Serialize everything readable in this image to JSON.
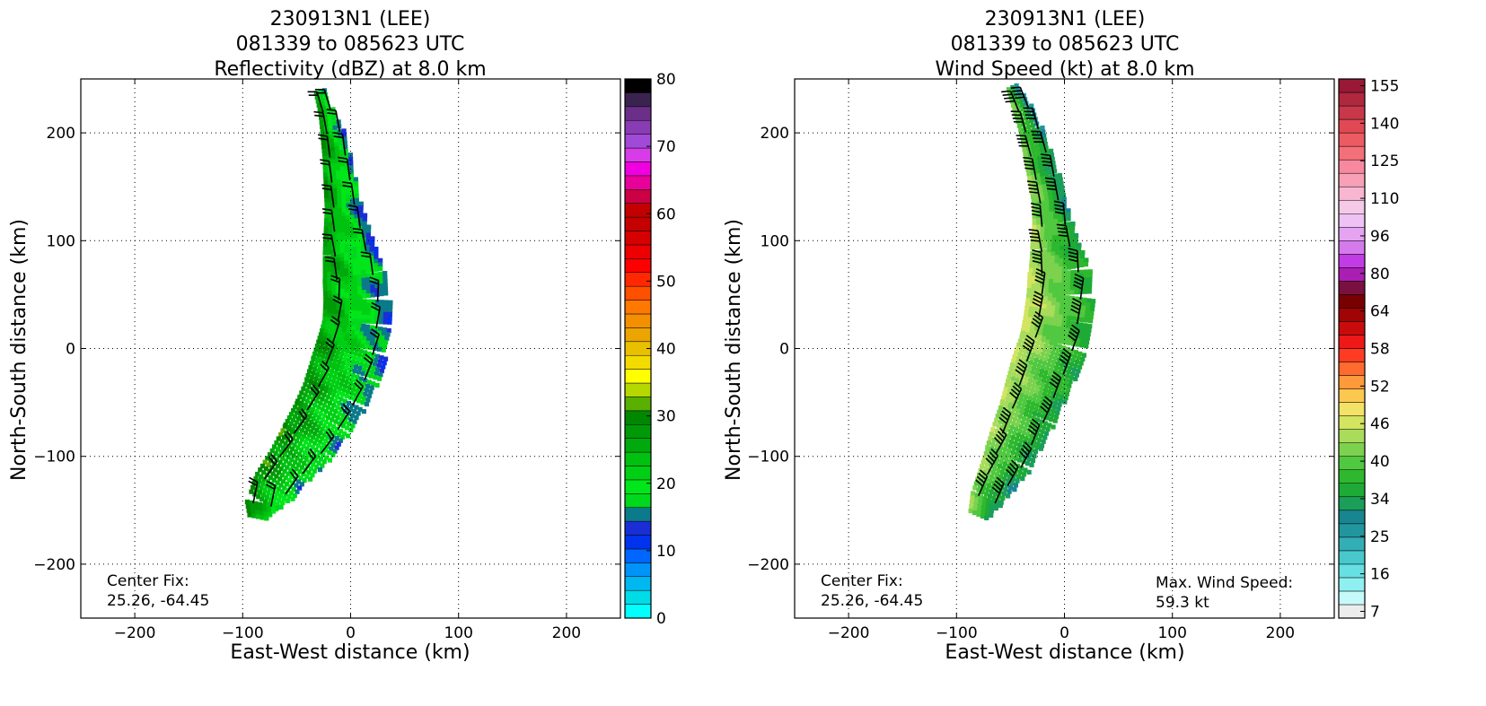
{
  "chart_data": [
    {
      "type": "heatmap",
      "title_lines": [
        "230913N1 (LEE)",
        "081339 to 085623 UTC",
        "Reflectivity (dBZ) at 8.0 km"
      ],
      "xlabel": "East-West distance (km)",
      "ylabel": "North-South distance (km)",
      "xlim": [
        -250,
        250
      ],
      "ylim": [
        -250,
        250
      ],
      "xticks": [
        -200,
        -100,
        0,
        100,
        200
      ],
      "yticks": [
        -200,
        -100,
        0,
        100,
        200
      ],
      "xticklabels": [
        "−200",
        "−100",
        "0",
        "100",
        "200"
      ],
      "yticklabels": [
        "−200",
        "−100",
        "0",
        "100",
        "200"
      ],
      "grid": true,
      "annotation_lines": [
        "Center Fix:",
        "25.26, -64.45"
      ],
      "colorbar": {
        "label": "dBZ",
        "min": 0,
        "max": 80,
        "ticks": [
          0,
          10,
          20,
          30,
          40,
          50,
          60,
          70,
          80
        ],
        "colors": [
          "#00ffff",
          "#00dbe8",
          "#00b8f0",
          "#0094f8",
          "#0066ff",
          "#0033ee",
          "#1a2ed6",
          "#0b7a8a",
          "#00d81e",
          "#00e61a",
          "#00d014",
          "#00c010",
          "#00aa0c",
          "#009a08",
          "#008800",
          "#5ab000",
          "#b4d800",
          "#ffff00",
          "#f2dc00",
          "#e8c000",
          "#eca400",
          "#f49000",
          "#ff7800",
          "#ff5000",
          "#ff2800",
          "#ff0000",
          "#ec0000",
          "#d60000",
          "#c40000",
          "#c20000",
          "#cc0044",
          "#e8009a",
          "#f000e0",
          "#d83ce8",
          "#a14ad8",
          "#8a3cb4",
          "#6b2f8a",
          "#3b234f",
          "#000000"
        ]
      },
      "track_points": [
        [
          -28,
          238
        ],
        [
          -22,
          220
        ],
        [
          -16,
          200
        ],
        [
          -12,
          178
        ],
        [
          -9,
          155
        ],
        [
          -6,
          132
        ],
        [
          -3,
          110
        ],
        [
          0,
          88
        ],
        [
          4,
          66
        ],
        [
          7,
          44
        ],
        [
          6,
          22
        ],
        [
          2,
          0
        ],
        [
          -5,
          -22
        ],
        [
          -14,
          -44
        ],
        [
          -26,
          -66
        ],
        [
          -40,
          -88
        ],
        [
          -55,
          -108
        ],
        [
          -70,
          -128
        ],
        [
          -82,
          -145
        ],
        [
          -85,
          -160
        ]
      ],
      "swath_halfwidth_km": [
        4,
        6,
        10,
        12,
        14,
        16,
        20,
        24,
        28,
        30,
        30,
        32,
        32,
        30,
        28,
        26,
        22,
        20,
        14,
        8
      ],
      "field": {
        "along_start": 22,
        "along_peak": 20,
        "along_end": 24,
        "cross_amp": 6
      },
      "barb_flags": 2
    },
    {
      "type": "heatmap",
      "title_lines": [
        "230913N1 (LEE)",
        "081339 to 085623 UTC",
        "Wind Speed (kt) at 8.0 km"
      ],
      "xlabel": "East-West distance (km)",
      "ylabel": "North-South distance (km)",
      "xlim": [
        -250,
        250
      ],
      "ylim": [
        -250,
        250
      ],
      "xticks": [
        -200,
        -100,
        0,
        100,
        200
      ],
      "yticks": [
        -200,
        -100,
        0,
        100,
        200
      ],
      "xticklabels": [
        "−200",
        "−100",
        "0",
        "100",
        "200"
      ],
      "yticklabels": [
        "−200",
        "−100",
        "0",
        "100",
        "200"
      ],
      "grid": true,
      "annotation_lines": [
        "Center Fix:",
        "25.26, -64.45"
      ],
      "annotation_right_lines": [
        "Max. Wind Speed:",
        "59.3 kt"
      ],
      "max_wind_speed_kt": 59.3,
      "colorbar": {
        "label": "kt",
        "min": 5,
        "max": 160,
        "tick_values": [
          7,
          16,
          25,
          34,
          40,
          46,
          52,
          58,
          64,
          80,
          96,
          110,
          125,
          140,
          155
        ],
        "colors": [
          "#ececec",
          "#c6fafa",
          "#8ef0f0",
          "#66e0e2",
          "#48c8cc",
          "#32aeb4",
          "#22969e",
          "#188690",
          "#1a9e5a",
          "#1eaa36",
          "#2eb82e",
          "#50c840",
          "#7cd24e",
          "#a8dc5a",
          "#d2e460",
          "#f2e266",
          "#fcc850",
          "#ff9a3c",
          "#ff6a2e",
          "#ff3c22",
          "#ee1818",
          "#c80c0c",
          "#a00404",
          "#780000",
          "#7a1040",
          "#aa1eb4",
          "#c23ce6",
          "#d47aec",
          "#e4a4f0",
          "#eec2f4",
          "#f4cae6",
          "#f8b6d0",
          "#f8a0b8",
          "#f8889e",
          "#f47078",
          "#ec5a62",
          "#e04854",
          "#c8384a",
          "#b0283e",
          "#981836"
        ]
      },
      "track_points": [
        [
          -48,
          242
        ],
        [
          -38,
          222
        ],
        [
          -30,
          202
        ],
        [
          -24,
          180
        ],
        [
          -18,
          158
        ],
        [
          -14,
          136
        ],
        [
          -10,
          114
        ],
        [
          -8,
          92
        ],
        [
          -4,
          70
        ],
        [
          -3,
          48
        ],
        [
          -6,
          26
        ],
        [
          -10,
          4
        ],
        [
          -18,
          -18
        ],
        [
          -26,
          -40
        ],
        [
          -34,
          -62
        ],
        [
          -44,
          -84
        ],
        [
          -52,
          -104
        ],
        [
          -62,
          -122
        ],
        [
          -72,
          -140
        ],
        [
          -80,
          -158
        ]
      ],
      "swath_halfwidth_km": [
        4,
        8,
        10,
        12,
        14,
        14,
        18,
        22,
        28,
        30,
        30,
        30,
        30,
        28,
        26,
        24,
        22,
        18,
        14,
        8
      ],
      "field": {
        "along_start": 40,
        "along_peak": 52,
        "along_end": 44,
        "cross_amp": 9
      },
      "barb_flags": 4
    }
  ]
}
